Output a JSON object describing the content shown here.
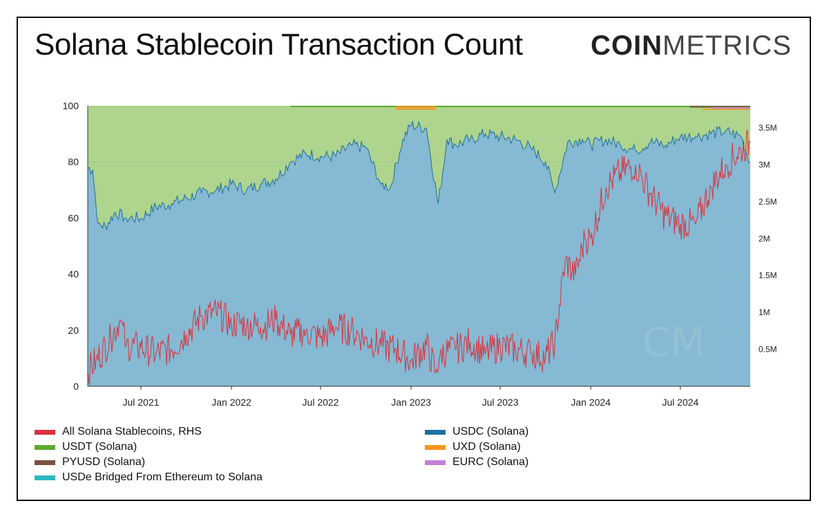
{
  "title": "Solana Stablecoin Transaction Count",
  "logo": {
    "bold": "COIN",
    "light": "METRICS"
  },
  "colors": {
    "all_solana": "#d9323c",
    "usdc": "#1e6fa0",
    "usdc_fill": "#86b9d3",
    "usdt": "#5cab2e",
    "usdt_fill": "#aed48d",
    "pyusd": "#7a5040",
    "uxd": "#f6951f",
    "eurc": "#c47fd6",
    "usde": "#2bb8c0"
  },
  "legend": [
    {
      "label": "All Solana Stablecoins, RHS",
      "color_key": "all_solana"
    },
    {
      "label": "USDC (Solana)",
      "color_key": "usdc"
    },
    {
      "label": "USDT (Solana)",
      "color_key": "usdt"
    },
    {
      "label": "UXD (Solana)",
      "color_key": "uxd"
    },
    {
      "label": "PYUSD (Solana)",
      "color_key": "pyusd"
    },
    {
      "label": "EURC (Solana)",
      "color_key": "eurc"
    },
    {
      "label": "USDe Bridged From Ethereum to Solana",
      "color_key": "usde"
    }
  ],
  "chart_data": {
    "type": "area",
    "title": "Solana Stablecoin Transaction Count",
    "x_ticks": [
      "Jul 2021",
      "Jan 2022",
      "Jul 2022",
      "Jan 2023",
      "Jul 2023",
      "Jan 2024",
      "Jul 2024"
    ],
    "x_range": [
      "2021-03-15",
      "2024-11-20"
    ],
    "y_left": {
      "ticks": [
        "0",
        "20",
        "40",
        "60",
        "80",
        "100"
      ],
      "range": [
        0,
        100
      ]
    },
    "y_right": {
      "ticks": [
        "0.5M",
        "1M",
        "1.5M",
        "2M",
        "2.5M",
        "3M",
        "3.5M"
      ],
      "range": [
        0,
        3800000
      ]
    },
    "grid": true,
    "series": [
      {
        "name": "USDC (Solana)",
        "axis": "left",
        "kind": "stacked-area",
        "x": [
          "2021-03-15",
          "2021-03-25",
          "2021-04-05",
          "2021-04-20",
          "2021-05-10",
          "2021-06-01",
          "2021-07-01",
          "2021-08-01",
          "2021-09-01",
          "2021-10-01",
          "2021-11-01",
          "2021-12-01",
          "2022-01-01",
          "2022-02-01",
          "2022-03-01",
          "2022-04-01",
          "2022-05-01",
          "2022-06-01",
          "2022-07-01",
          "2022-08-01",
          "2022-09-01",
          "2022-10-01",
          "2022-11-01",
          "2022-11-20",
          "2022-12-15",
          "2023-01-01",
          "2023-02-01",
          "2023-02-25",
          "2023-03-15",
          "2023-04-01",
          "2023-05-01",
          "2023-06-01",
          "2023-07-01",
          "2023-08-01",
          "2023-09-01",
          "2023-10-01",
          "2023-10-20",
          "2023-11-15",
          "2023-12-15",
          "2024-01-01",
          "2024-02-01",
          "2024-03-01",
          "2024-04-01",
          "2024-05-01",
          "2024-06-01",
          "2024-07-01",
          "2024-08-01",
          "2024-09-01",
          "2024-10-01",
          "2024-11-01",
          "2024-11-20"
        ],
        "values": [
          78,
          77,
          58,
          57,
          62,
          60,
          60,
          64,
          65,
          67,
          69,
          70,
          72,
          70,
          72,
          74,
          80,
          83,
          82,
          82,
          86,
          85,
          72,
          71,
          88,
          93,
          92,
          65,
          88,
          86,
          88,
          90,
          89,
          88,
          85,
          80,
          69,
          87,
          88,
          86,
          88,
          86,
          84,
          87,
          86,
          89,
          89,
          90,
          91,
          89,
          80
        ]
      },
      {
        "name": "USDT (Solana)",
        "axis": "left",
        "kind": "stacked-area",
        "x": [
          "2021-03-15",
          "2022-05-01",
          "2022-09-01",
          "2022-11-15",
          "2023-01-01",
          "2023-03-01",
          "2023-06-01",
          "2024-01-01",
          "2024-07-01",
          "2024-11-20"
        ],
        "values": [
          22,
          20,
          15,
          27,
          5,
          7,
          8,
          12,
          11,
          13
        ]
      },
      {
        "name": "All Solana Stablecoins, RHS",
        "axis": "right",
        "kind": "line",
        "x": [
          "2021-03-15",
          "2021-04-01",
          "2021-05-01",
          "2021-05-20",
          "2021-06-01",
          "2021-07-01",
          "2021-08-01",
          "2021-09-01",
          "2021-10-01",
          "2021-11-01",
          "2021-12-01",
          "2022-01-01",
          "2022-02-01",
          "2022-03-01",
          "2022-04-01",
          "2022-05-01",
          "2022-06-01",
          "2022-07-01",
          "2022-08-01",
          "2022-09-01",
          "2022-10-01",
          "2022-11-01",
          "2022-12-01",
          "2023-01-01",
          "2023-02-01",
          "2023-02-20",
          "2023-03-01",
          "2023-04-01",
          "2023-05-01",
          "2023-06-01",
          "2023-07-01",
          "2023-08-01",
          "2023-09-01",
          "2023-10-01",
          "2023-10-20",
          "2023-11-10",
          "2023-12-01",
          "2023-12-20",
          "2024-01-01",
          "2024-02-01",
          "2024-03-01",
          "2024-04-01",
          "2024-05-01",
          "2024-06-01",
          "2024-07-01",
          "2024-08-01",
          "2024-09-01",
          "2024-10-01",
          "2024-11-01",
          "2024-11-20"
        ],
        "values": [
          200000,
          350000,
          650000,
          900000,
          560000,
          520000,
          450000,
          500000,
          700000,
          950000,
          1000000,
          850000,
          850000,
          800000,
          900000,
          700000,
          750000,
          650000,
          800000,
          750000,
          650000,
          550000,
          500000,
          350000,
          550000,
          200000,
          450000,
          500000,
          600000,
          450000,
          550000,
          500000,
          450000,
          400000,
          600000,
          1700000,
          1500000,
          2000000,
          2000000,
          2700000,
          2900000,
          3000000,
          2600000,
          2300000,
          2200000,
          2200000,
          2700000,
          3000000,
          3200000,
          3300000
        ]
      }
    ]
  }
}
